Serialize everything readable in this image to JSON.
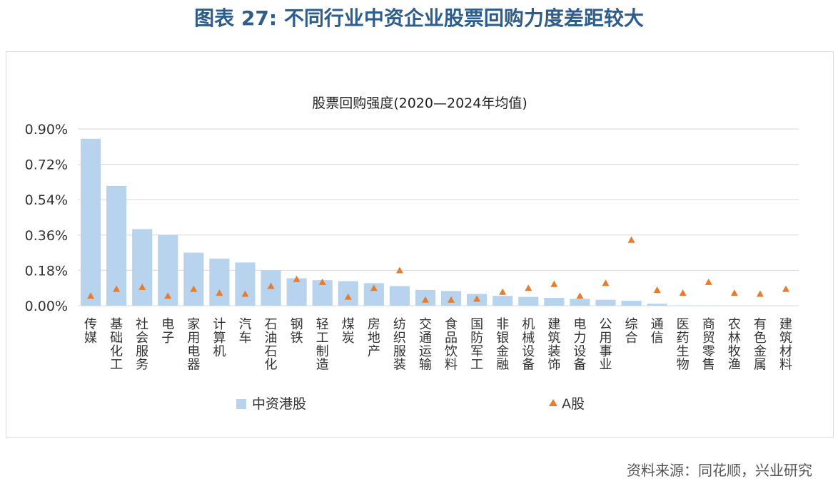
{
  "figure_title": "图表 27: 不同行业中资企业股票回购力度差距较大",
  "source": "资料来源：同花顺，兴业研究",
  "colors": {
    "bar": "#b7d3ee",
    "marker": "#e87c2a",
    "grid": "#d9d9d9",
    "title": "#2d5d8c"
  },
  "chart_data": {
    "type": "bar",
    "title": "股票回购强度(2020—2024年均值)",
    "xlabel": "",
    "ylabel": "",
    "ylim": [
      0,
      0.9
    ],
    "yticks": [
      "0.00%",
      "0.18%",
      "0.36%",
      "0.54%",
      "0.72%",
      "0.90%"
    ],
    "grid": true,
    "legend_position": "bottom",
    "categories": [
      "传媒",
      "基础化工",
      "社会服务",
      "电子",
      "家用电器",
      "计算机",
      "汽车",
      "石油石化",
      "钢铁",
      "轻工制造",
      "煤炭",
      "房地产",
      "纺织服装",
      "交通运输",
      "食品饮料",
      "国防军工",
      "非银金融",
      "机械设备",
      "建筑装饰",
      "电力设备",
      "公用事业",
      "综合",
      "通信",
      "医药生物",
      "商贸零售",
      "农林牧渔",
      "有色金属",
      "建筑材料"
    ],
    "series": [
      {
        "name": "中资港股",
        "kind": "bar",
        "values": [
          0.85,
          0.61,
          0.39,
          0.36,
          0.27,
          0.24,
          0.22,
          0.18,
          0.14,
          0.13,
          0.125,
          0.115,
          0.1,
          0.08,
          0.075,
          0.06,
          0.05,
          0.045,
          0.04,
          0.035,
          0.03,
          0.025,
          0.01,
          0.002,
          0.001,
          0,
          0,
          0
        ]
      },
      {
        "name": "A股",
        "kind": "marker",
        "values": [
          0.05,
          0.085,
          0.095,
          0.05,
          0.085,
          0.065,
          0.06,
          0.1,
          0.135,
          0.12,
          0.045,
          0.09,
          0.18,
          0.03,
          0.03,
          0.035,
          0.07,
          0.09,
          0.11,
          0.05,
          0.115,
          0.335,
          0.08,
          0.065,
          0.12,
          0.065,
          0.06,
          0.085
        ]
      }
    ]
  }
}
